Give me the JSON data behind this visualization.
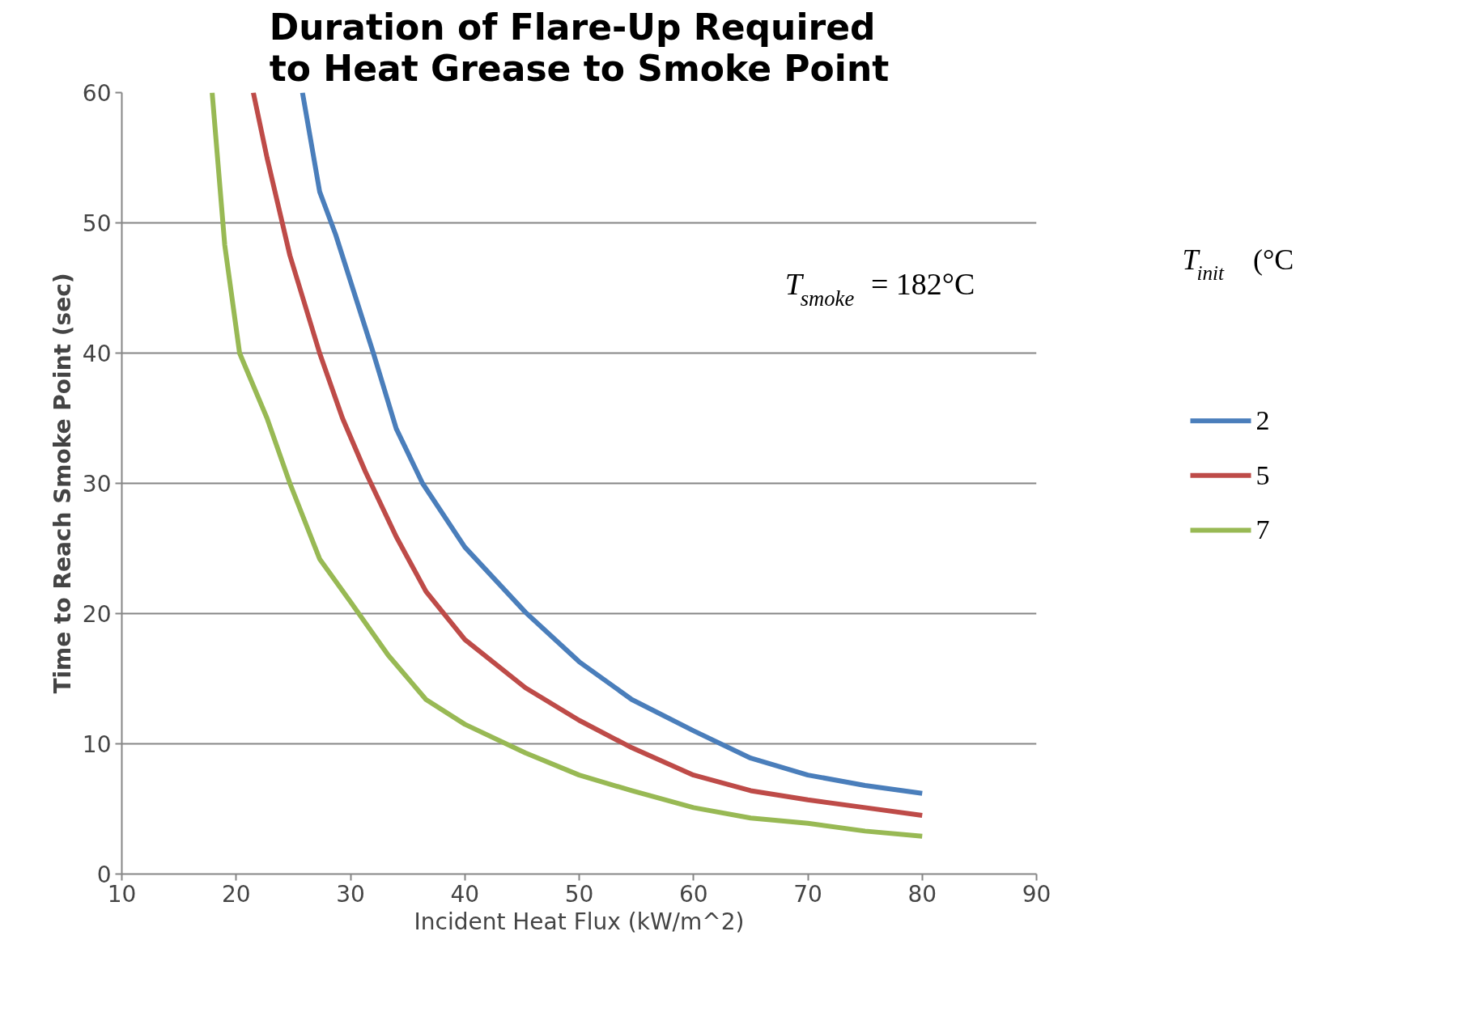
{
  "chart_data": {
    "type": "line",
    "title": "Duration of Flare-Up Required\nto Heat Grease to Smoke Point",
    "xlabel": "Incident Heat Flux (kW/m^2)",
    "ylabel": "Time to Reach Smoke Point (sec)",
    "legend_title": "T$_{init}$ (°C",
    "annotations": [
      "T$_{smoke}$ = 182°C"
    ],
    "xlim": [
      10,
      90
    ],
    "ylim": [
      0,
      60
    ],
    "xticks": [
      10,
      20,
      30,
      40,
      50,
      60,
      70,
      80,
      90
    ],
    "yticks": [
      0,
      10,
      20,
      30,
      40,
      50,
      60
    ],
    "grid": "y",
    "legend": "right",
    "series": [
      {
        "name": "2",
        "color": "#4a7ebb",
        "x": [
          25.8,
          27.3,
          28.7,
          32.0,
          34.0,
          36.3,
          40,
          45.3,
          50,
          54.6,
          60,
          65,
          70,
          75,
          80
        ],
        "values": [
          60,
          52.4,
          49.1,
          40,
          34.2,
          30,
          25.1,
          20.1,
          16.3,
          13.4,
          11,
          8.9,
          7.6,
          6.8,
          6.2
        ]
      },
      {
        "name": "5",
        "color": "#be4b48",
        "x": [
          21.5,
          22.7,
          24.7,
          27.3,
          29.3,
          31.3,
          34,
          36.6,
          40,
          45.3,
          50,
          54.6,
          60,
          65,
          70,
          75,
          80
        ],
        "values": [
          60,
          55,
          47.5,
          40,
          35,
          30.9,
          25.9,
          21.7,
          18,
          14.3,
          11.8,
          9.7,
          7.6,
          6.4,
          5.7,
          5.1,
          4.5
        ]
      },
      {
        "name": "7",
        "color": "#98b954",
        "x": [
          17.9,
          19,
          20.3,
          22.7,
          24.7,
          27.3,
          30,
          33.3,
          36.6,
          40,
          45.3,
          50,
          54.6,
          60,
          65,
          70,
          75,
          80
        ],
        "values": [
          60,
          48.3,
          40,
          35,
          30,
          24.2,
          20.9,
          16.8,
          13.4,
          11.5,
          9.3,
          7.6,
          6.4,
          5.1,
          4.3,
          3.9,
          3.3,
          2.9
        ]
      }
    ]
  }
}
